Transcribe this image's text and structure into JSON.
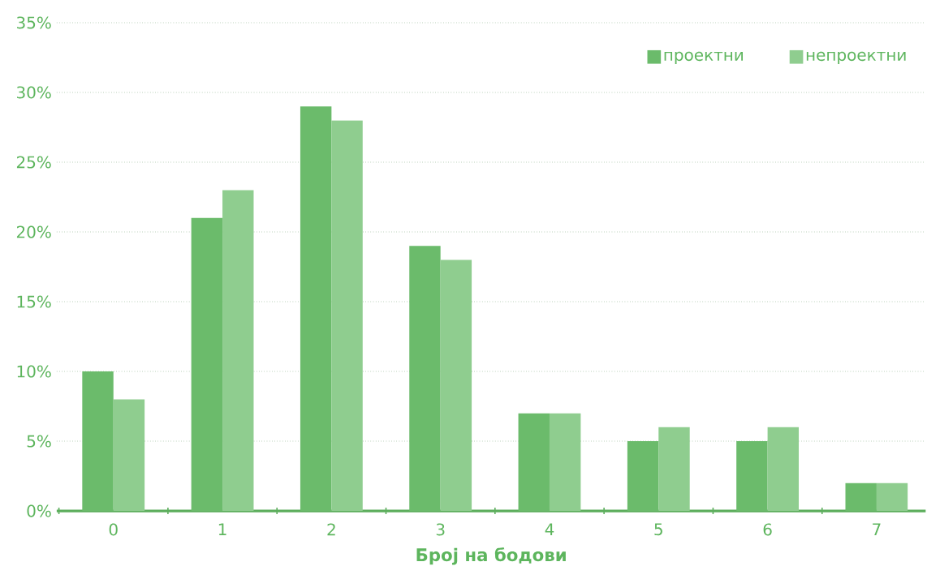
{
  "chart_data": {
    "type": "bar",
    "xlabel": "Број на бодови",
    "categories": [
      "0",
      "1",
      "2",
      "3",
      "4",
      "5",
      "6",
      "7"
    ],
    "series": [
      {
        "name": "проектни",
        "color": "#6bbb6b",
        "values": [
          10,
          21,
          29,
          19,
          7,
          5,
          5,
          2
        ]
      },
      {
        "name": "непроектни",
        "color": "#8fcd8f",
        "values": [
          8,
          23,
          28,
          18,
          7,
          6,
          6,
          2
        ]
      }
    ],
    "ylim": [
      0,
      35
    ],
    "yticks": [
      {
        "value": 0,
        "label": "0%"
      },
      {
        "value": 5,
        "label": "5%"
      },
      {
        "value": 10,
        "label": "10%"
      },
      {
        "value": 15,
        "label": "15%"
      },
      {
        "value": 20,
        "label": "20%"
      },
      {
        "value": 25,
        "label": "25%"
      },
      {
        "value": 30,
        "label": "30%"
      },
      {
        "value": 35,
        "label": "35%"
      }
    ],
    "grid": "y",
    "legend": "top right"
  }
}
